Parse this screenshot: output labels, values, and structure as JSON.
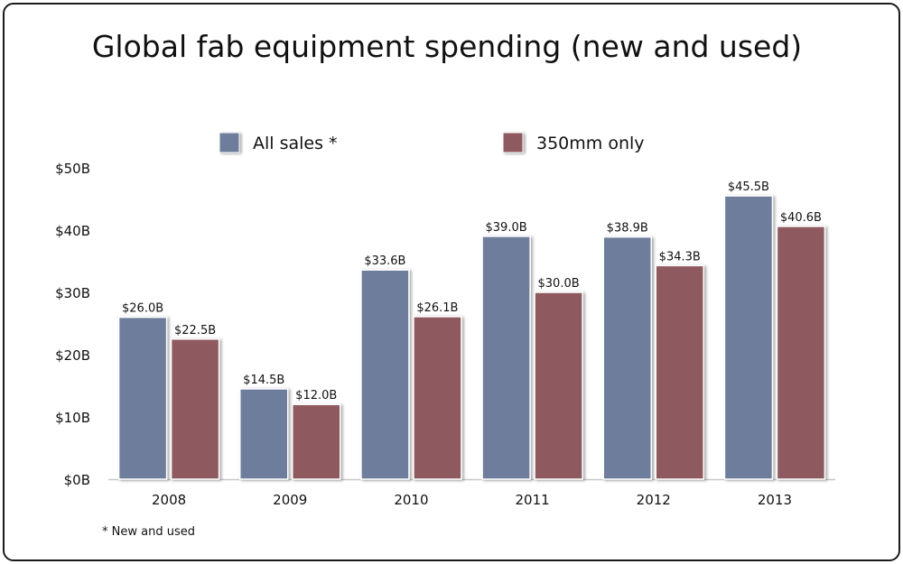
{
  "chart_data": {
    "type": "bar",
    "title": "Global fab equipment spending (new and used)",
    "categories": [
      "2008",
      "2009",
      "2010",
      "2011",
      "2012",
      "2013"
    ],
    "series": [
      {
        "name": "All sales *",
        "color": "#6e7d9b",
        "values": [
          26.0,
          14.5,
          33.6,
          39.0,
          38.9,
          45.5
        ],
        "labels": [
          "$26.0B",
          "$14.5B",
          "$33.6B",
          "$39.0B",
          "$38.9B",
          "$45.5B"
        ]
      },
      {
        "name": "350mm only",
        "color": "#8e5a5e",
        "values": [
          22.5,
          12.0,
          26.1,
          30.0,
          34.3,
          40.6
        ],
        "labels": [
          "$22.5B",
          "$12.0B",
          "$26.1B",
          "$30.0B",
          "$34.3B",
          "$40.6B"
        ]
      }
    ],
    "ylim": [
      0,
      50
    ],
    "yticks": [
      0,
      10,
      20,
      30,
      40,
      50
    ],
    "ytick_labels": [
      "$0B",
      "$10B",
      "$20B",
      "$30B",
      "$40B",
      "$50B"
    ],
    "grid": false,
    "legend_position": "top",
    "footnote": "* New and used"
  }
}
